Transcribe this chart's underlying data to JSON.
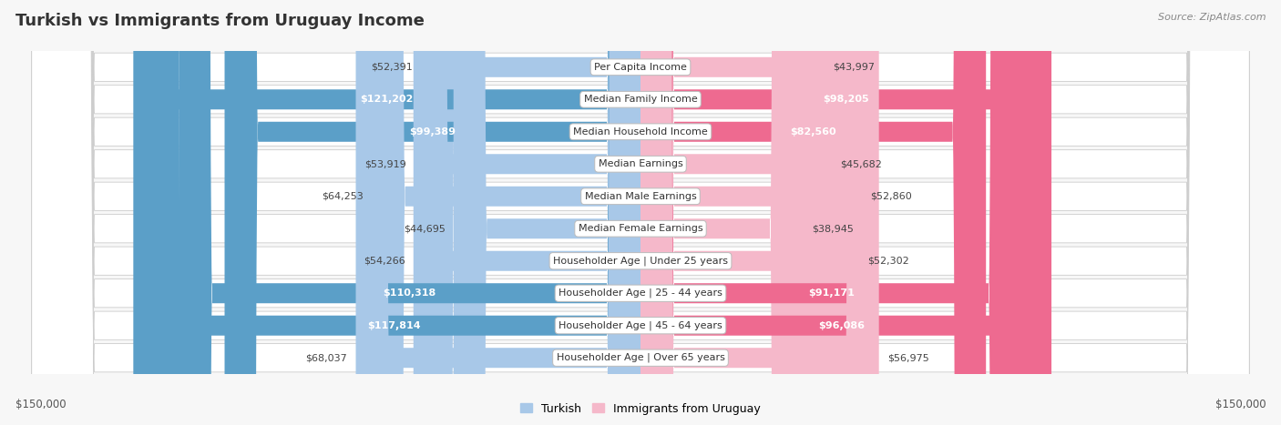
{
  "title": "Turkish vs Immigrants from Uruguay Income",
  "source": "Source: ZipAtlas.com",
  "categories": [
    "Per Capita Income",
    "Median Family Income",
    "Median Household Income",
    "Median Earnings",
    "Median Male Earnings",
    "Median Female Earnings",
    "Householder Age | Under 25 years",
    "Householder Age | 25 - 44 years",
    "Householder Age | 45 - 64 years",
    "Householder Age | Over 65 years"
  ],
  "turkish_values": [
    52391,
    121202,
    99389,
    53919,
    64253,
    44695,
    54266,
    110318,
    117814,
    68037
  ],
  "uruguay_values": [
    43997,
    98205,
    82560,
    45682,
    52860,
    38945,
    52302,
    91171,
    96086,
    56975
  ],
  "max_val": 150000,
  "turkish_color_light": "#A8C8E8",
  "turkish_color_dark": "#5B9FC8",
  "uruguay_color_light": "#F5B8CA",
  "uruguay_color_dark": "#EE6A90",
  "bg_color": "#f7f7f7",
  "row_bg_color": "#e8e8e8",
  "label_threshold": 80000,
  "turkish_label": "Turkish",
  "uruguay_label": "Immigrants from Uruguay",
  "left_axis_label": "$150,000",
  "right_axis_label": "$150,000",
  "title_fontsize": 13,
  "source_fontsize": 8,
  "label_fontsize": 8,
  "cat_fontsize": 8
}
